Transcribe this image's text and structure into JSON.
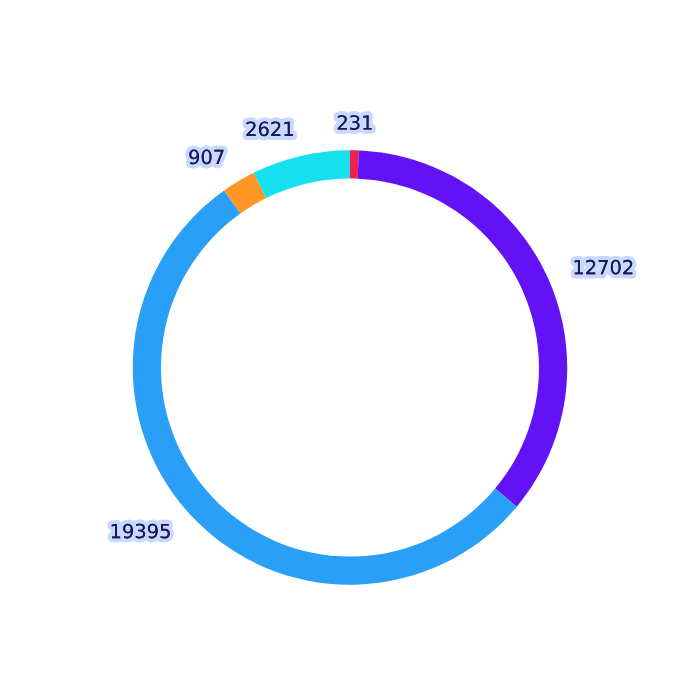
{
  "chart_data": {
    "type": "donut",
    "categories": [
      null,
      null,
      null,
      null,
      null
    ],
    "values": [
      231,
      12702,
      19395,
      907,
      2621
    ],
    "colors": [
      "#f0204a",
      "#6212f5",
      "#2a9ff8",
      "#ff9626",
      "#17e0ee"
    ],
    "data_labels": true,
    "legend": false
  }
}
